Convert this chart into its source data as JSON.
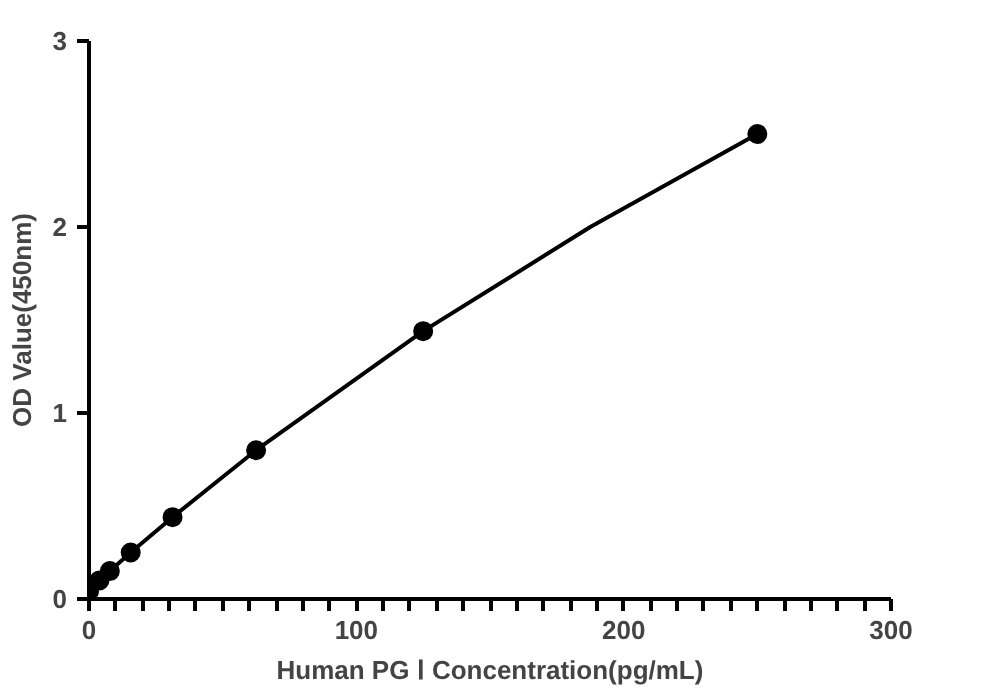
{
  "chart_data": {
    "type": "scatter",
    "xlabel": "Human PG Ⅰ Concentration(pg/mL)",
    "ylabel": "OD Value(450nm)",
    "xlim": [
      0,
      300
    ],
    "ylim": [
      0,
      3
    ],
    "xticks": [
      0,
      {
        "value": 10,
        "label": null
      },
      {
        "value": 20,
        "label": null
      },
      {
        "value": 30,
        "label": null
      },
      {
        "value": 40,
        "label": null
      },
      {
        "value": 50,
        "label": null
      },
      {
        "value": 60,
        "label": null
      },
      {
        "value": 70,
        "label": null
      },
      {
        "value": 80,
        "label": null
      },
      {
        "value": 90,
        "label": null
      },
      100,
      {
        "value": 110,
        "label": null
      },
      {
        "value": 120,
        "label": null
      },
      {
        "value": 130,
        "label": null
      },
      {
        "value": 140,
        "label": null
      },
      {
        "value": 150,
        "label": null
      },
      {
        "value": 160,
        "label": null
      },
      {
        "value": 170,
        "label": null
      },
      {
        "value": 180,
        "label": null
      },
      {
        "value": 190,
        "label": null
      },
      200,
      {
        "value": 210,
        "label": null
      },
      {
        "value": 220,
        "label": null
      },
      {
        "value": 230,
        "label": null
      },
      {
        "value": 240,
        "label": null
      },
      {
        "value": 250,
        "label": null
      },
      {
        "value": 260,
        "label": null
      },
      {
        "value": 270,
        "label": null
      },
      {
        "value": 280,
        "label": null
      },
      {
        "value": 290,
        "label": null
      },
      300
    ],
    "yticks": [
      0,
      1,
      2,
      3
    ],
    "grid": false,
    "series": [
      {
        "color": "#000000",
        "marker": "circle",
        "x": [
          0,
          3.9,
          7.8,
          15.6,
          31.25,
          62.5,
          125,
          250
        ],
        "values": [
          0.04,
          0.1,
          0.15,
          0.25,
          0.44,
          0.8,
          1.44,
          2.5
        ]
      },
      {
        "type": "line",
        "color": "#000000",
        "line_style": "solid",
        "x": [
          0,
          3.9,
          7.8,
          15.6,
          31.25,
          62.5,
          93.75,
          125,
          187.5,
          250
        ],
        "values": [
          0.04,
          0.1,
          0.15,
          0.25,
          0.44,
          0.8,
          1.12,
          1.44,
          2.0,
          2.5
        ]
      }
    ]
  }
}
